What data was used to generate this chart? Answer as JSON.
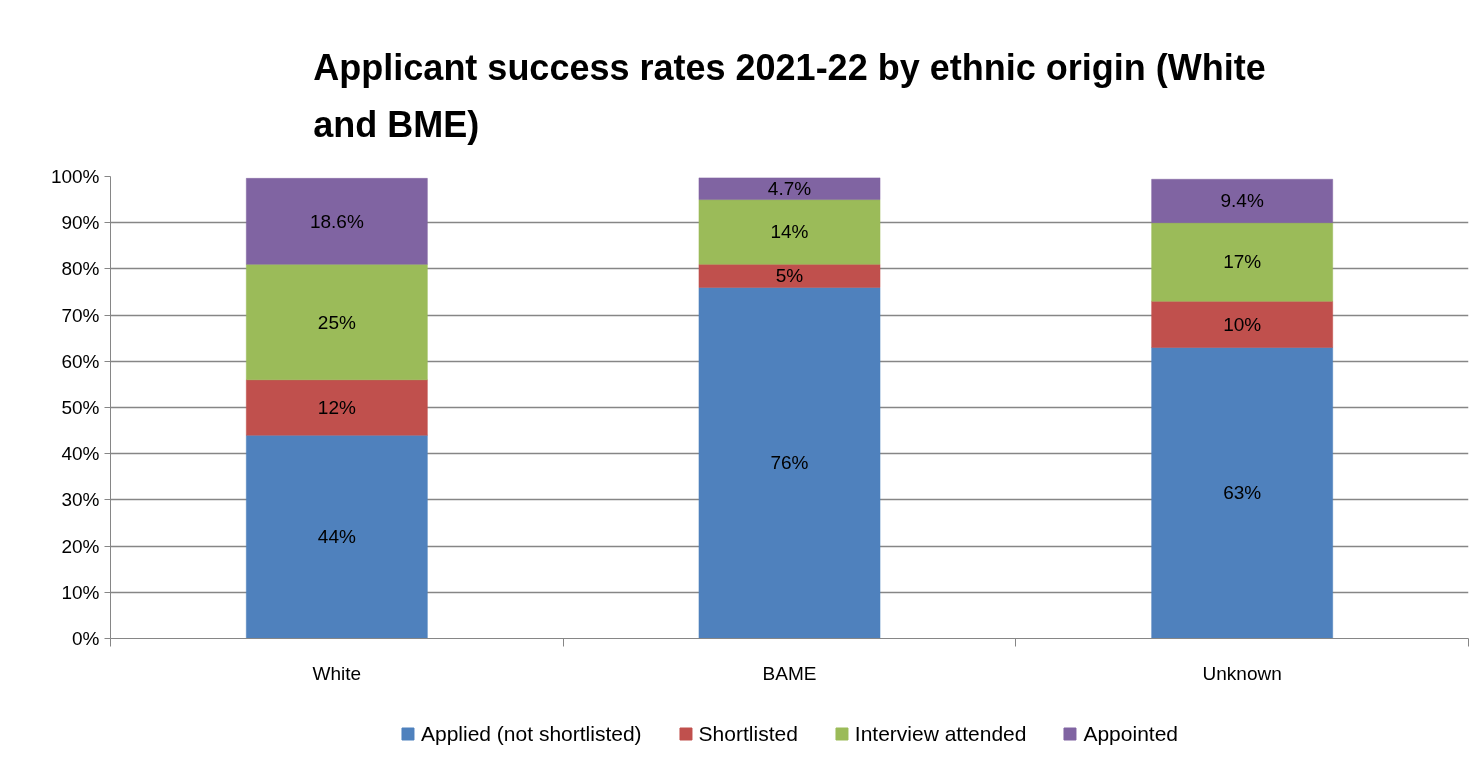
{
  "chart_data": {
    "type": "bar",
    "stacked": true,
    "title": "Applicant success rates 2021-22 by ethnic origin (White and BME)",
    "categories": [
      "White",
      "BAME",
      "Unknown"
    ],
    "series": [
      {
        "name": "Applied (not shortlisted)",
        "color": "#4f81bd",
        "values": [
          44,
          76,
          63
        ],
        "value_labels": [
          "44%",
          "76%",
          "63%"
        ]
      },
      {
        "name": "Shortlisted",
        "color": "#c0504d",
        "values": [
          12,
          5,
          10
        ],
        "value_labels": [
          "12%",
          "5%",
          "10%"
        ]
      },
      {
        "name": "Interview attended",
        "color": "#9bbb59",
        "values": [
          25,
          14,
          17
        ],
        "value_labels": [
          "25%",
          "14%",
          "17%"
        ]
      },
      {
        "name": "Appointed",
        "color": "#8064a2",
        "values": [
          18.6,
          4.7,
          9.4
        ],
        "value_labels": [
          "18.6%",
          "4.7%",
          "9.4%"
        ]
      }
    ],
    "ylim": [
      0,
      100
    ],
    "yticks": [
      {
        "value": 0,
        "label": "0%"
      },
      {
        "value": 10,
        "label": "10%"
      },
      {
        "value": 20,
        "label": "20%"
      },
      {
        "value": 30,
        "label": "30%"
      },
      {
        "value": 40,
        "label": "40%"
      },
      {
        "value": 50,
        "label": "50%"
      },
      {
        "value": 60,
        "label": "60%"
      },
      {
        "value": 70,
        "label": "70%"
      },
      {
        "value": 80,
        "label": "80%"
      },
      {
        "value": 90,
        "label": "90%"
      },
      {
        "value": 100,
        "label": "100%"
      }
    ],
    "grid": "y",
    "legend": "bottom"
  }
}
